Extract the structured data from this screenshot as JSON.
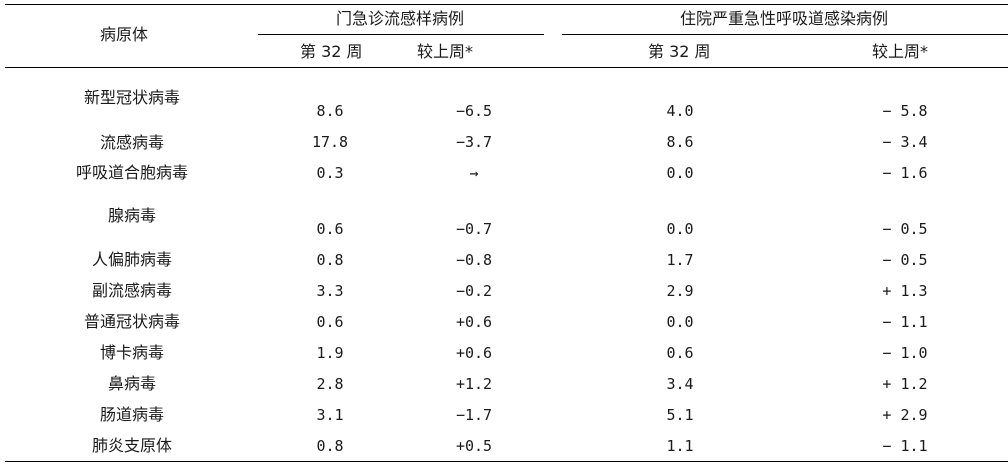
{
  "header": {
    "pathogen_col": "病原体",
    "outpatient_group": "门急诊流感样病例",
    "inpatient_group": "住院严重急性呼吸道感染病例",
    "week_label": "第 32 周",
    "change_label": "较上周*"
  },
  "rows": [
    {
      "pathogen": "新型冠状病毒",
      "op_week": "8.6",
      "op_change": "−6.5",
      "ip_week": "4.0",
      "ip_change": "− 5.8"
    },
    {
      "pathogen": "流感病毒",
      "op_week": "17.8",
      "op_change": "−3.7",
      "ip_week": "8.6",
      "ip_change": "− 3.4"
    },
    {
      "pathogen": "呼吸道合胞病毒",
      "op_week": "0.3",
      "op_change": "→",
      "ip_week": "0.0",
      "ip_change": "− 1.6"
    },
    {
      "pathogen": "腺病毒",
      "op_week": "0.6",
      "op_change": "−0.7",
      "ip_week": "0.0",
      "ip_change": "− 0.5"
    },
    {
      "pathogen": "人偏肺病毒",
      "op_week": "0.8",
      "op_change": "−0.8",
      "ip_week": "1.7",
      "ip_change": "− 0.5"
    },
    {
      "pathogen": "副流感病毒",
      "op_week": "3.3",
      "op_change": "−0.2",
      "ip_week": "2.9",
      "ip_change": "+ 1.3"
    },
    {
      "pathogen": "普通冠状病毒",
      "op_week": "0.6",
      "op_change": "+0.6",
      "ip_week": "0.0",
      "ip_change": "− 1.1"
    },
    {
      "pathogen": "博卡病毒",
      "op_week": "1.9",
      "op_change": "+0.6",
      "ip_week": "0.6",
      "ip_change": "− 1.0"
    },
    {
      "pathogen": "鼻病毒",
      "op_week": "2.8",
      "op_change": "+1.2",
      "ip_week": "3.4",
      "ip_change": "+ 1.2"
    },
    {
      "pathogen": "肠道病毒",
      "op_week": "3.1",
      "op_change": "−1.7",
      "ip_week": "5.1",
      "ip_change": "+ 2.9"
    },
    {
      "pathogen": "肺炎支原体",
      "op_week": "0.8",
      "op_change": "+0.5",
      "ip_week": "1.1",
      "ip_change": "− 1.1"
    }
  ]
}
